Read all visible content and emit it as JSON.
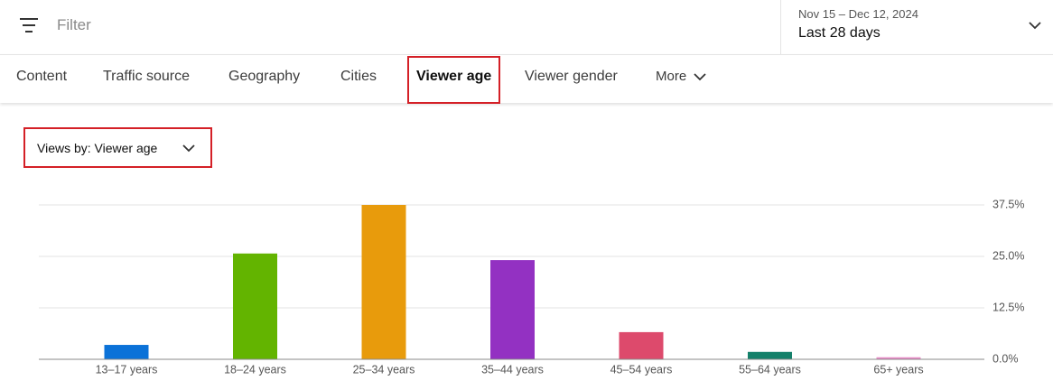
{
  "filter": {
    "placeholder": "Filter"
  },
  "date_range": {
    "dates": "Nov 15 – Dec 12, 2024",
    "label": "Last 28 days"
  },
  "tabs": [
    "Content",
    "Traffic source",
    "Geography",
    "Cities",
    "Viewer age",
    "Viewer gender",
    "More"
  ],
  "dropdown": {
    "label": "Views by: Viewer age"
  },
  "chart_data": {
    "type": "bar",
    "categories": [
      "13–17 years",
      "18–24 years",
      "25–34 years",
      "35–44 years",
      "45–54 years",
      "55–64 years",
      "65+ years"
    ],
    "values": [
      3.5,
      25.7,
      37.5,
      24.1,
      6.6,
      1.8,
      0.5
    ],
    "colors": [
      "#0b72d8",
      "#63b400",
      "#e89b0c",
      "#9331c2",
      "#dd4a6c",
      "#14806a",
      "#e88bc6"
    ],
    "ylim": [
      0,
      37.5
    ],
    "yticks": [
      {
        "value": 0,
        "label": "0.0%"
      },
      {
        "value": 12.5,
        "label": "12.5%"
      },
      {
        "value": 25,
        "label": "25.0%"
      },
      {
        "value": 37.5,
        "label": "37.5%"
      }
    ],
    "grid": true
  }
}
